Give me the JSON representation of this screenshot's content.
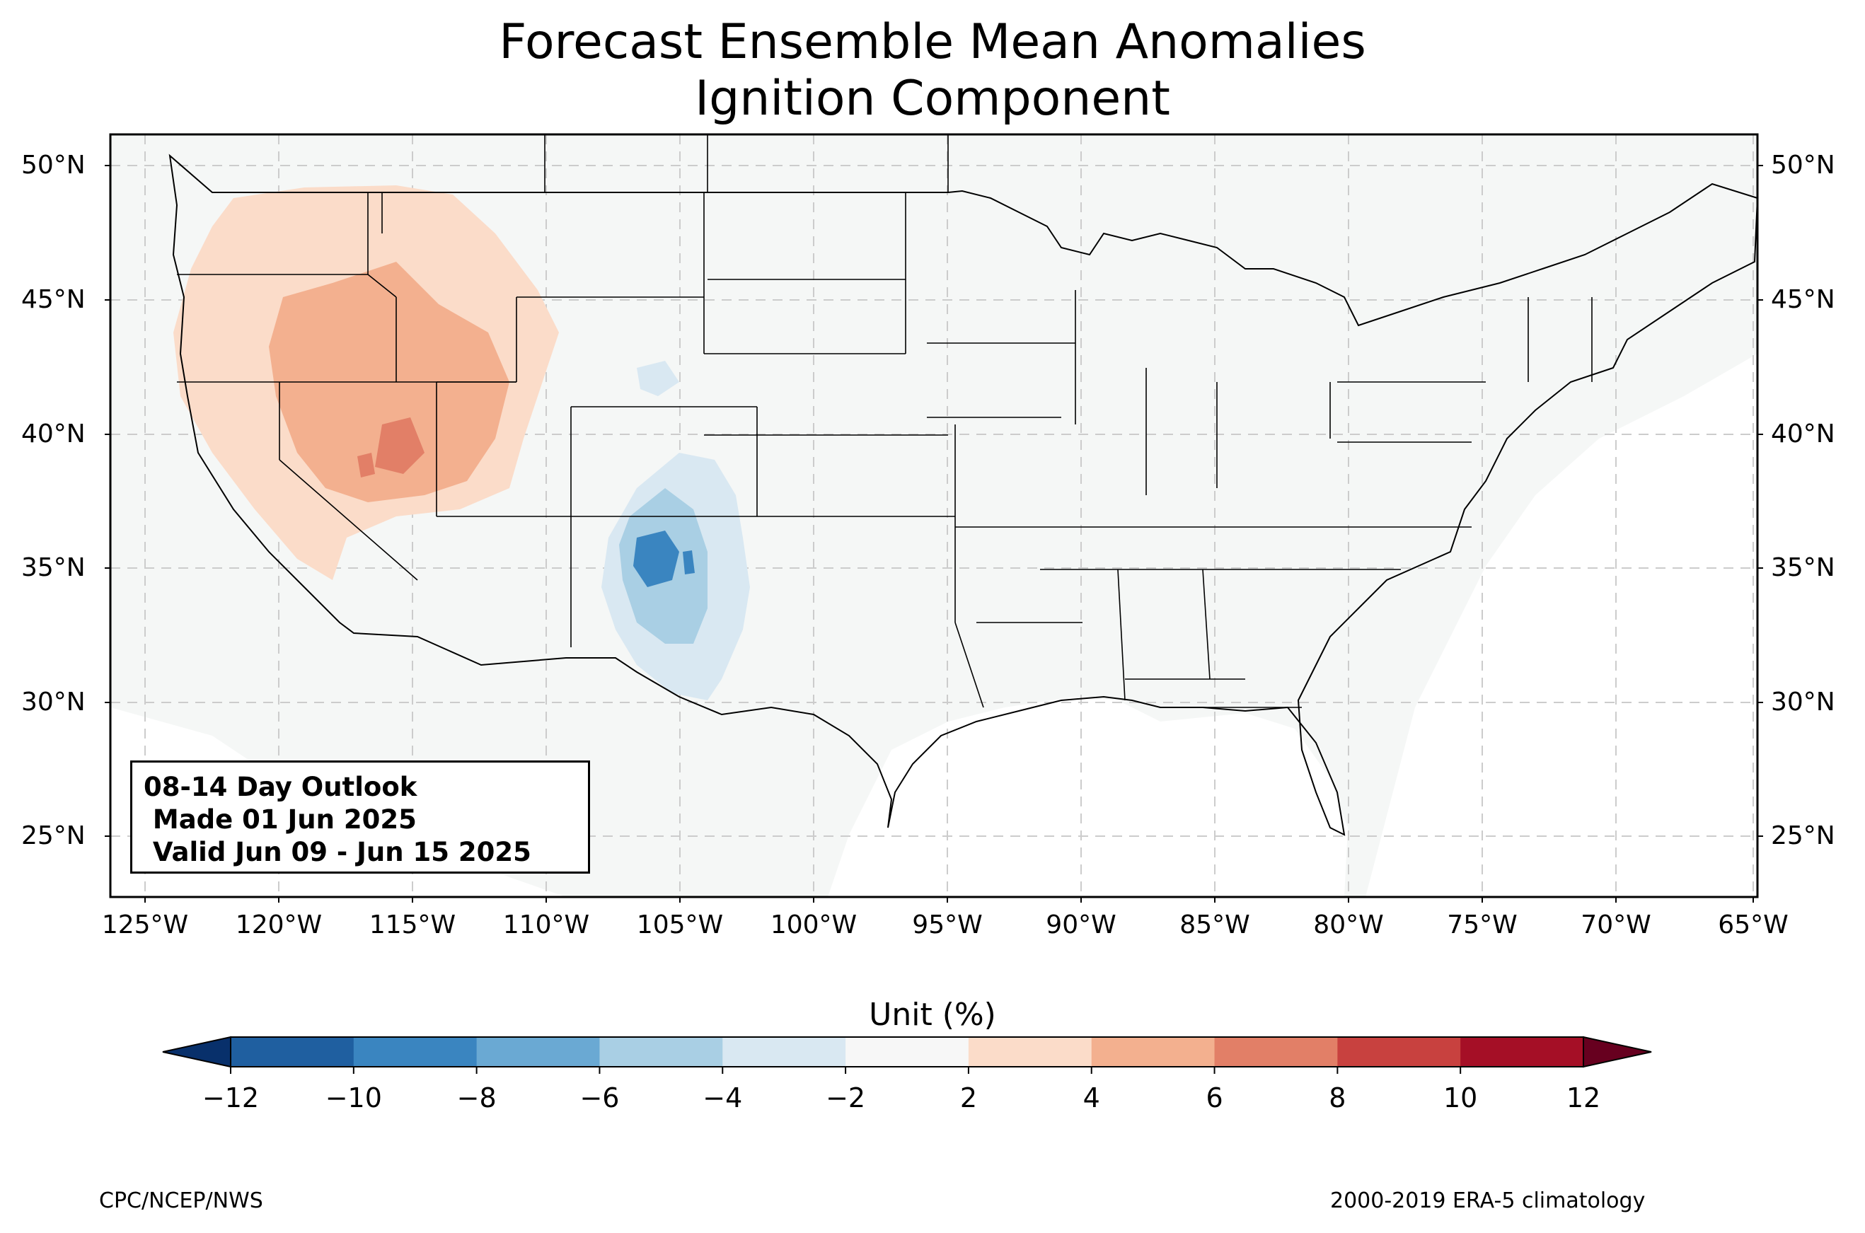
{
  "title": {
    "line1": "Forecast Ensemble Mean Anomalies",
    "line2": "Ignition Component"
  },
  "axes": {
    "lat_labels": [
      "50°N",
      "45°N",
      "40°N",
      "35°N",
      "30°N",
      "25°N"
    ],
    "lon_labels": [
      "125°W",
      "120°W",
      "115°W",
      "110°W",
      "105°W",
      "100°W",
      "95°W",
      "90°W",
      "85°W",
      "80°W",
      "75°W",
      "70°W",
      "65°W"
    ]
  },
  "outlook_box": {
    "line1": "08-14 Day Outlook",
    "line2": " Made 01 Jun 2025",
    "line3": " Valid Jun 09 - Jun 15 2025"
  },
  "colorbar": {
    "title": "Unit (%)",
    "ticks": [
      "−12",
      "−10",
      "−8",
      "−6",
      "−4",
      "−2",
      "2",
      "4",
      "6",
      "8",
      "10",
      "12"
    ],
    "colors": [
      "#08306b",
      "#1f5fa0",
      "#3a85c0",
      "#6aa9d3",
      "#a9cfe4",
      "#d9e8f2",
      "#f7f7f7",
      "#fbdcc9",
      "#f3b08f",
      "#e27f67",
      "#c8413f",
      "#a50f26",
      "#67001f"
    ]
  },
  "anomaly_regions": [
    {
      "region": "Pacific Northwest / Northern Rockies",
      "category": "2 to 4"
    },
    {
      "region": "Great Basin (Nevada / Utah)",
      "category": "4 to 6"
    },
    {
      "region": "Central Utah core",
      "category": "6 to 8"
    },
    {
      "region": "New Mexico / West Texas",
      "category": "-2 to -6"
    },
    {
      "region": "Central New Mexico core",
      "category": "-6 to -10"
    }
  ],
  "footer": {
    "left": "CPC/NCEP/NWS",
    "right": "2000-2019 ERA-5 climatology"
  }
}
